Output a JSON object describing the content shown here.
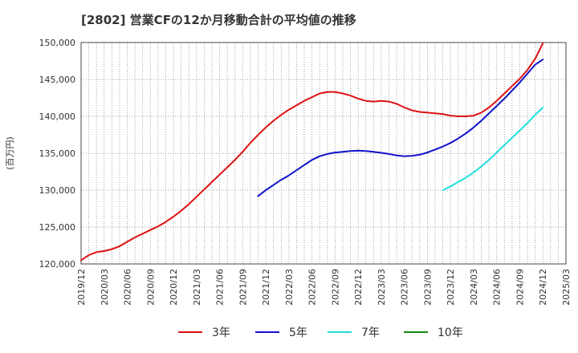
{
  "chart_data": {
    "type": "line",
    "title": "[2802]  営業CFの12か月移動合計の平均値の推移",
    "ylabel": "(百万円)",
    "xlabel": "",
    "ylim": [
      120000,
      150000
    ],
    "y_ticks": [
      "120,000",
      "125,000",
      "130,000",
      "135,000",
      "140,000",
      "145,000",
      "150,000"
    ],
    "x_ticks": [
      "2019/12",
      "2020/03",
      "2020/06",
      "2020/09",
      "2020/12",
      "2021/03",
      "2021/06",
      "2021/09",
      "2021/12",
      "2022/03",
      "2022/06",
      "2022/09",
      "2022/12",
      "2023/03",
      "2023/06",
      "2023/09",
      "2023/12",
      "2024/03",
      "2024/06",
      "2024/09",
      "2024/12",
      "2025/03"
    ],
    "grid": true,
    "legend_position": "bottom",
    "series": [
      {
        "name": "3年",
        "color": "#dd1111",
        "points": [
          [
            "2019/12",
            120500
          ],
          [
            "2020/01",
            121200
          ],
          [
            "2020/02",
            121600
          ],
          [
            "2020/03",
            121750
          ],
          [
            "2020/04",
            122000
          ],
          [
            "2020/05",
            122400
          ],
          [
            "2020/06",
            123000
          ],
          [
            "2020/07",
            123600
          ],
          [
            "2020/08",
            124100
          ],
          [
            "2020/09",
            124600
          ],
          [
            "2020/10",
            125100
          ],
          [
            "2020/11",
            125700
          ],
          [
            "2020/12",
            126400
          ],
          [
            "2021/01",
            127200
          ],
          [
            "2021/02",
            128100
          ],
          [
            "2021/03",
            129100
          ],
          [
            "2021/04",
            130100
          ],
          [
            "2021/05",
            131100
          ],
          [
            "2021/06",
            132100
          ],
          [
            "2021/07",
            133100
          ],
          [
            "2021/08",
            134100
          ],
          [
            "2021/09",
            135200
          ],
          [
            "2021/10",
            136400
          ],
          [
            "2021/11",
            137500
          ],
          [
            "2021/12",
            138500
          ],
          [
            "2022/01",
            139400
          ],
          [
            "2022/02",
            140200
          ],
          [
            "2022/03",
            140900
          ],
          [
            "2022/04",
            141500
          ],
          [
            "2022/05",
            142100
          ],
          [
            "2022/06",
            142600
          ],
          [
            "2022/07",
            143100
          ],
          [
            "2022/08",
            143300
          ],
          [
            "2022/09",
            143300
          ],
          [
            "2022/10",
            143100
          ],
          [
            "2022/11",
            142800
          ],
          [
            "2022/12",
            142400
          ],
          [
            "2023/01",
            142100
          ],
          [
            "2023/02",
            142000
          ],
          [
            "2023/03",
            142100
          ],
          [
            "2023/04",
            142000
          ],
          [
            "2023/05",
            141700
          ],
          [
            "2023/06",
            141200
          ],
          [
            "2023/07",
            140800
          ],
          [
            "2023/08",
            140600
          ],
          [
            "2023/09",
            140500
          ],
          [
            "2023/10",
            140400
          ],
          [
            "2023/11",
            140300
          ],
          [
            "2023/12",
            140100
          ],
          [
            "2024/01",
            140000
          ],
          [
            "2024/02",
            140000
          ],
          [
            "2024/03",
            140100
          ],
          [
            "2024/04",
            140500
          ],
          [
            "2024/05",
            141200
          ],
          [
            "2024/06",
            142100
          ],
          [
            "2024/07",
            143100
          ],
          [
            "2024/08",
            144100
          ],
          [
            "2024/09",
            145100
          ],
          [
            "2024/10",
            146300
          ],
          [
            "2024/11",
            147800
          ],
          [
            "2024/12",
            149900
          ]
        ]
      },
      {
        "name": "5年",
        "color": "#1111cc",
        "points": [
          [
            "2021/11",
            129200
          ],
          [
            "2021/12",
            130000
          ],
          [
            "2022/01",
            130700
          ],
          [
            "2022/02",
            131400
          ],
          [
            "2022/03",
            132000
          ],
          [
            "2022/04",
            132700
          ],
          [
            "2022/05",
            133400
          ],
          [
            "2022/06",
            134100
          ],
          [
            "2022/07",
            134600
          ],
          [
            "2022/08",
            134900
          ],
          [
            "2022/09",
            135100
          ],
          [
            "2022/10",
            135200
          ],
          [
            "2022/11",
            135300
          ],
          [
            "2022/12",
            135350
          ],
          [
            "2023/01",
            135300
          ],
          [
            "2023/02",
            135200
          ],
          [
            "2023/03",
            135050
          ],
          [
            "2023/04",
            134900
          ],
          [
            "2023/05",
            134700
          ],
          [
            "2023/06",
            134600
          ],
          [
            "2023/07",
            134650
          ],
          [
            "2023/08",
            134800
          ],
          [
            "2023/09",
            135100
          ],
          [
            "2023/10",
            135500
          ],
          [
            "2023/11",
            135900
          ],
          [
            "2023/12",
            136400
          ],
          [
            "2024/01",
            137000
          ],
          [
            "2024/02",
            137700
          ],
          [
            "2024/03",
            138500
          ],
          [
            "2024/04",
            139400
          ],
          [
            "2024/05",
            140400
          ],
          [
            "2024/06",
            141400
          ],
          [
            "2024/07",
            142400
          ],
          [
            "2024/08",
            143500
          ],
          [
            "2024/09",
            144600
          ],
          [
            "2024/10",
            145800
          ],
          [
            "2024/11",
            147000
          ],
          [
            "2024/12",
            147700
          ]
        ]
      },
      {
        "name": "7年",
        "color": "#22dddd",
        "points": [
          [
            "2023/11",
            130000
          ],
          [
            "2023/12",
            130500
          ],
          [
            "2024/01",
            131100
          ],
          [
            "2024/02",
            131700
          ],
          [
            "2024/03",
            132400
          ],
          [
            "2024/04",
            133200
          ],
          [
            "2024/05",
            134100
          ],
          [
            "2024/06",
            135100
          ],
          [
            "2024/07",
            136100
          ],
          [
            "2024/08",
            137100
          ],
          [
            "2024/09",
            138100
          ],
          [
            "2024/10",
            139100
          ],
          [
            "2024/11",
            140200
          ],
          [
            "2024/12",
            141200
          ]
        ]
      },
      {
        "name": "10年",
        "color": "#118811",
        "points": []
      }
    ]
  }
}
